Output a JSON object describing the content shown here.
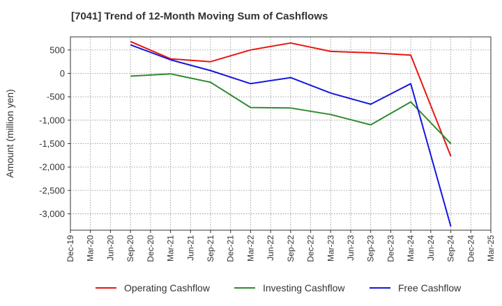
{
  "chart_data": {
    "type": "line",
    "title": "[7041]  Trend of 12-Month Moving Sum of Cashflows",
    "ylabel": "Amount (million yen)",
    "xlabel": "",
    "ylim": [
      -3350,
      780
    ],
    "yticks": [
      500,
      0,
      -500,
      -1000,
      -1500,
      -2000,
      -2500,
      -3000
    ],
    "ytick_labels": [
      "500",
      "0",
      "-500",
      "-1,000",
      "-1,500",
      "-2,000",
      "-2,500",
      "-3,000"
    ],
    "categories": [
      "Dec-19",
      "Mar-20",
      "Jun-20",
      "Sep-20",
      "Dec-20",
      "Mar-21",
      "Jun-21",
      "Sep-21",
      "Dec-21",
      "Mar-22",
      "Jun-22",
      "Sep-22",
      "Dec-22",
      "Mar-23",
      "Jun-23",
      "Sep-23",
      "Dec-23",
      "Mar-24",
      "Jun-24",
      "Sep-24",
      "Dec-24",
      "Mar-25"
    ],
    "series": [
      {
        "name": "Operating Cashflow",
        "color": "#e8150f",
        "values": [
          null,
          null,
          null,
          680,
          null,
          310,
          null,
          250,
          null,
          500,
          null,
          650,
          null,
          470,
          null,
          440,
          null,
          390,
          null,
          -1770,
          null,
          null
        ]
      },
      {
        "name": "Investing Cashflow",
        "color": "#2e8b2e",
        "values": [
          null,
          null,
          null,
          -60,
          null,
          -10,
          null,
          -190,
          null,
          -730,
          null,
          -740,
          null,
          -880,
          null,
          -1100,
          null,
          -610,
          null,
          -1500,
          null,
          null
        ]
      },
      {
        "name": "Free Cashflow",
        "color": "#1515e0",
        "values": [
          null,
          null,
          null,
          610,
          null,
          290,
          null,
          60,
          null,
          -220,
          null,
          -90,
          null,
          -420,
          null,
          -660,
          null,
          -220,
          null,
          -3270,
          null,
          null
        ]
      }
    ],
    "grid": true,
    "legend_position": "bottom"
  }
}
